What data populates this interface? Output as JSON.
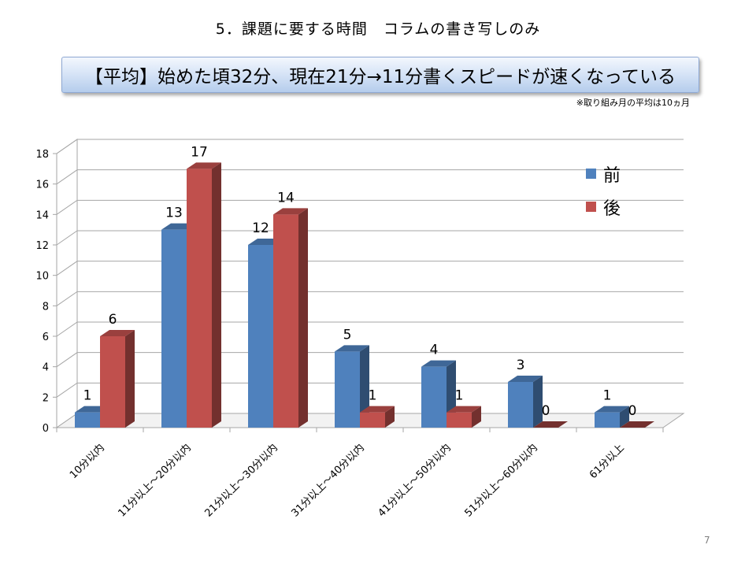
{
  "slide": {
    "title": "5．課題に要する時間　コラムの書き写しのみ",
    "banner": "【平均】始めた頃32分、現在21分→11分書くスピードが速くなっている",
    "note": "※取り組み月の平均は10ヵ月",
    "page_number": "7"
  },
  "chart_data": {
    "type": "bar",
    "style": "3d-clustered-column",
    "title": "",
    "xlabel": "",
    "ylabel": "",
    "categories": [
      "10分以内",
      "11分以上～20分以内",
      "21分以上～30分以内",
      "31分以上～40分以内",
      "41分以上～50分以内",
      "51分以上～60分以内",
      "61分以上"
    ],
    "series": [
      {
        "name": "前",
        "values": [
          1,
          13,
          12,
          5,
          4,
          3,
          1
        ],
        "color": "#4f81bd"
      },
      {
        "name": "後",
        "values": [
          6,
          17,
          14,
          1,
          1,
          0,
          0
        ],
        "color": "#c0504d"
      }
    ],
    "ylim": [
      0,
      18
    ],
    "yticks": [
      0,
      2,
      4,
      6,
      8,
      10,
      12,
      14,
      16,
      18
    ],
    "grid": true,
    "legend_position": "top-right",
    "data_labels": true
  }
}
